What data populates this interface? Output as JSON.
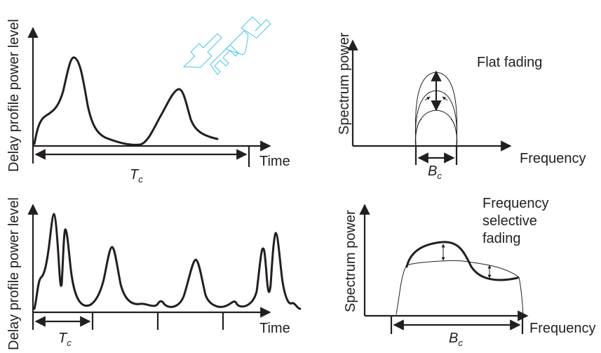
{
  "watermark": {
    "text": "TEAM",
    "color": "#46c8e8"
  },
  "ink_color": "#231f20",
  "panels": {
    "top_left": {
      "ylabel": "Delay profile power level",
      "xlabel": "Time",
      "span_label": "T",
      "span_sub": "c"
    },
    "top_right": {
      "ylabel": "Spectrum power",
      "xlabel": "Frequency",
      "annotation": "Flat fading",
      "span_label": "B",
      "span_sub": "c"
    },
    "bottom_left": {
      "ylabel": "Delay profile power level",
      "xlabel": "Time",
      "span_label": "T",
      "span_sub": "c"
    },
    "bottom_right": {
      "ylabel": "Spectrum power",
      "xlabel": "Frequency",
      "annotation_lines": [
        "Frequency",
        "selective",
        "fading"
      ],
      "span_label": "B",
      "span_sub": "c"
    }
  }
}
